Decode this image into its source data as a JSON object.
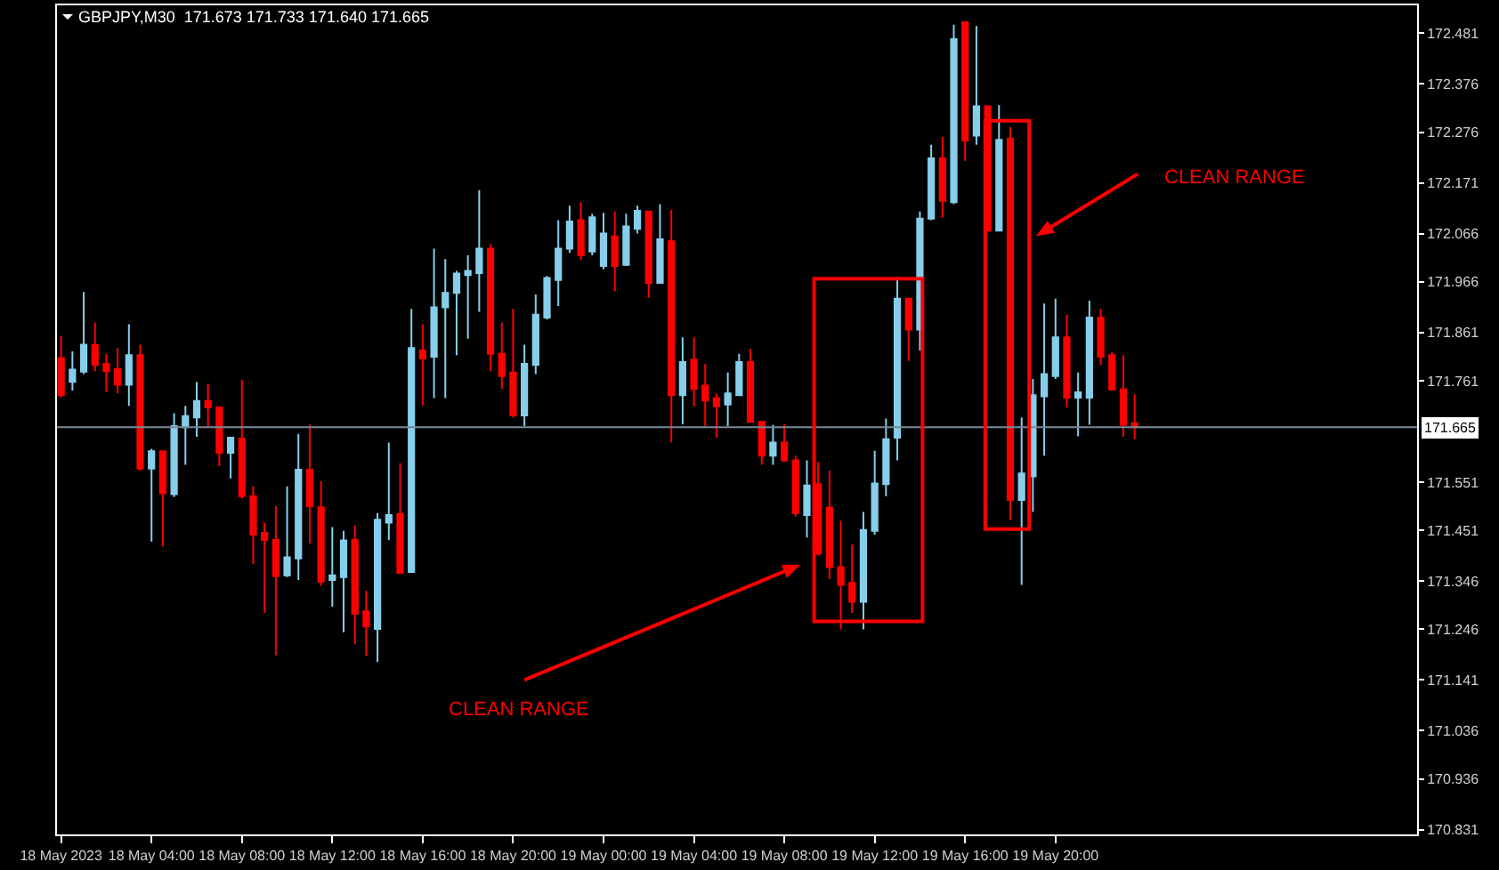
{
  "chart_data": {
    "type": "candlestick",
    "title": "GBPJPY,M30  171.673 171.733 171.640 171.665",
    "annotations": [
      "CLEAN RANGE",
      "CLEAN RANGE"
    ],
    "x": [
      "2023-05-18T00:00",
      "2023-05-18T00:30",
      "2023-05-18T01:00",
      "2023-05-18T01:30",
      "2023-05-18T02:00",
      "2023-05-18T02:30",
      "2023-05-18T03:00",
      "2023-05-18T03:30",
      "2023-05-18T04:00",
      "2023-05-18T04:30",
      "2023-05-18T05:00",
      "2023-05-18T05:30",
      "2023-05-18T06:00",
      "2023-05-18T06:30",
      "2023-05-18T07:00",
      "2023-05-18T07:30",
      "2023-05-18T08:00",
      "2023-05-18T08:30",
      "2023-05-18T09:00",
      "2023-05-18T09:30",
      "2023-05-18T10:00",
      "2023-05-18T10:30",
      "2023-05-18T11:00",
      "2023-05-18T11:30",
      "2023-05-18T12:00",
      "2023-05-18T12:30",
      "2023-05-18T13:00",
      "2023-05-18T13:30",
      "2023-05-18T14:00",
      "2023-05-18T14:30",
      "2023-05-18T15:00",
      "2023-05-18T15:30",
      "2023-05-18T16:00",
      "2023-05-18T16:30",
      "2023-05-18T17:00",
      "2023-05-18T17:30",
      "2023-05-18T18:00",
      "2023-05-18T18:30",
      "2023-05-18T19:00",
      "2023-05-18T19:30",
      "2023-05-18T20:00",
      "2023-05-18T20:30",
      "2023-05-18T21:00",
      "2023-05-18T21:30",
      "2023-05-18T22:00",
      "2023-05-18T22:30",
      "2023-05-18T23:00",
      "2023-05-18T23:30",
      "2023-05-19T00:00",
      "2023-05-19T00:30",
      "2023-05-19T01:00",
      "2023-05-19T01:30",
      "2023-05-19T02:00",
      "2023-05-19T02:30",
      "2023-05-19T03:00",
      "2023-05-19T03:30",
      "2023-05-19T04:00",
      "2023-05-19T04:30",
      "2023-05-19T05:00",
      "2023-05-19T05:30",
      "2023-05-19T06:00",
      "2023-05-19T06:30",
      "2023-05-19T07:00",
      "2023-05-19T07:30",
      "2023-05-19T08:00",
      "2023-05-19T08:30",
      "2023-05-19T09:00",
      "2023-05-19T09:30",
      "2023-05-19T10:00",
      "2023-05-19T10:30",
      "2023-05-19T11:00",
      "2023-05-19T11:30",
      "2023-05-19T12:00",
      "2023-05-19T12:30",
      "2023-05-19T13:00",
      "2023-05-19T13:30",
      "2023-05-19T14:00",
      "2023-05-19T14:30",
      "2023-05-19T15:00",
      "2023-05-19T15:30",
      "2023-05-19T16:00",
      "2023-05-19T16:30",
      "2023-05-19T17:00",
      "2023-05-19T17:30",
      "2023-05-19T18:00",
      "2023-05-19T18:30",
      "2023-05-19T19:00",
      "2023-05-19T19:30",
      "2023-05-19T20:00",
      "2023-05-19T20:30",
      "2023-05-19T21:00",
      "2023-05-19T21:30",
      "2023-05-19T22:00",
      "2023-05-19T22:30",
      "2023-05-19T23:00",
      "2023-05-19T23:30"
    ],
    "ohlc": [
      [
        171.808,
        171.854,
        171.726,
        171.731
      ],
      [
        171.759,
        171.822,
        171.741,
        171.784
      ],
      [
        171.78,
        171.945,
        171.775,
        171.836
      ],
      [
        171.835,
        171.882,
        171.781,
        171.794
      ],
      [
        171.796,
        171.817,
        171.738,
        171.781
      ],
      [
        171.785,
        171.829,
        171.735,
        171.753
      ],
      [
        171.753,
        171.878,
        171.709,
        171.814
      ],
      [
        171.814,
        171.836,
        171.575,
        171.579
      ],
      [
        171.579,
        171.62,
        171.428,
        171.615
      ],
      [
        171.615,
        171.615,
        171.418,
        171.528
      ],
      [
        171.526,
        171.694,
        171.52,
        171.667
      ],
      [
        171.665,
        171.709,
        171.587,
        171.688
      ],
      [
        171.685,
        171.759,
        171.645,
        171.719
      ],
      [
        171.719,
        171.755,
        171.665,
        171.706
      ],
      [
        171.706,
        171.706,
        171.584,
        171.612
      ],
      [
        171.612,
        171.643,
        171.559,
        171.643
      ],
      [
        171.641,
        171.763,
        171.517,
        171.522
      ],
      [
        171.522,
        171.542,
        171.381,
        171.442
      ],
      [
        171.446,
        171.467,
        171.28,
        171.431
      ],
      [
        171.431,
        171.501,
        171.192,
        171.356
      ],
      [
        171.358,
        171.542,
        171.354,
        171.395
      ],
      [
        171.393,
        171.651,
        171.348,
        171.577
      ],
      [
        171.577,
        171.671,
        171.424,
        171.501
      ],
      [
        171.499,
        171.553,
        171.336,
        171.345
      ],
      [
        171.348,
        171.458,
        171.293,
        171.358
      ],
      [
        171.354,
        171.45,
        171.24,
        171.43
      ],
      [
        171.431,
        171.462,
        171.215,
        171.278
      ],
      [
        171.283,
        171.326,
        171.191,
        171.252
      ],
      [
        171.247,
        171.487,
        171.178,
        171.473
      ],
      [
        171.467,
        171.633,
        171.431,
        171.483
      ],
      [
        171.485,
        171.59,
        171.363,
        171.363
      ],
      [
        171.365,
        171.91,
        171.365,
        171.829
      ],
      [
        171.824,
        171.878,
        171.71,
        171.807
      ],
      [
        171.811,
        172.035,
        171.725,
        171.913
      ],
      [
        171.913,
        172.013,
        171.725,
        171.943
      ],
      [
        171.943,
        171.989,
        171.814,
        171.983
      ],
      [
        171.98,
        172.021,
        171.848,
        171.989
      ],
      [
        171.984,
        172.156,
        171.904,
        172.035
      ],
      [
        172.035,
        172.044,
        171.781,
        171.817
      ],
      [
        171.817,
        171.882,
        171.744,
        171.771
      ],
      [
        171.778,
        171.91,
        171.685,
        171.689
      ],
      [
        171.689,
        171.836,
        171.667,
        171.796
      ],
      [
        171.794,
        171.94,
        171.775,
        171.898
      ],
      [
        171.892,
        171.978,
        171.888,
        171.974
      ],
      [
        171.97,
        172.094,
        171.916,
        172.035
      ],
      [
        172.035,
        172.124,
        172.026,
        172.091
      ],
      [
        172.094,
        172.131,
        172.011,
        172.021
      ],
      [
        172.029,
        172.107,
        172.021,
        172.1
      ],
      [
        171.999,
        172.109,
        171.992,
        172.066
      ],
      [
        172.06,
        172.112,
        171.947,
        171.999
      ],
      [
        172.001,
        172.107,
        171.999,
        172.081
      ],
      [
        172.076,
        172.124,
        172.066,
        172.113
      ],
      [
        172.112,
        172.112,
        171.933,
        171.964
      ],
      [
        171.964,
        172.127,
        171.964,
        172.054
      ],
      [
        172.05,
        172.115,
        171.633,
        171.731
      ],
      [
        171.731,
        171.851,
        171.671,
        171.8
      ],
      [
        171.805,
        171.851,
        171.708,
        171.744
      ],
      [
        171.751,
        171.796,
        171.665,
        171.72
      ],
      [
        171.725,
        171.735,
        171.643,
        171.708
      ],
      [
        171.712,
        171.778,
        171.667,
        171.735
      ],
      [
        171.731,
        171.817,
        171.731,
        171.8
      ],
      [
        171.8,
        171.827,
        171.676,
        171.676
      ],
      [
        171.676,
        171.676,
        171.587,
        171.606
      ],
      [
        171.606,
        171.67,
        171.587,
        171.633
      ],
      [
        171.633,
        171.671,
        171.593,
        171.596
      ],
      [
        171.596,
        171.606,
        171.48,
        171.487
      ],
      [
        171.483,
        171.596,
        171.436,
        171.544
      ],
      [
        171.547,
        171.593,
        171.399,
        171.403
      ],
      [
        171.498,
        171.575,
        171.35,
        171.375
      ],
      [
        171.375,
        171.471,
        171.246,
        171.338
      ],
      [
        171.342,
        171.422,
        171.28,
        171.303
      ],
      [
        171.303,
        171.489,
        171.246,
        171.452
      ],
      [
        171.45,
        171.616,
        171.442,
        171.548
      ],
      [
        171.547,
        171.683,
        171.522,
        171.64
      ],
      [
        171.643,
        171.976,
        171.596,
        171.931
      ],
      [
        171.931,
        171.931,
        171.802,
        171.867
      ],
      [
        171.867,
        172.112,
        171.824,
        172.097
      ],
      [
        172.097,
        172.25,
        172.094,
        172.222
      ],
      [
        172.222,
        172.266,
        172.099,
        172.134
      ],
      [
        172.131,
        172.499,
        172.127,
        172.469
      ],
      [
        172.504,
        172.504,
        172.217,
        172.259
      ],
      [
        172.269,
        172.496,
        172.25,
        172.33
      ],
      [
        172.33,
        172.332,
        172.072,
        172.072
      ],
      [
        172.072,
        172.332,
        172.072,
        172.26
      ],
      [
        172.263,
        172.287,
        171.473,
        171.514
      ],
      [
        171.514,
        171.685,
        171.338,
        171.569
      ],
      [
        171.563,
        171.765,
        171.489,
        171.731
      ],
      [
        171.729,
        171.921,
        171.606,
        171.775
      ],
      [
        171.771,
        171.931,
        171.765,
        171.851
      ],
      [
        171.851,
        171.898,
        171.706,
        171.726
      ],
      [
        171.726,
        171.778,
        171.646,
        171.737
      ],
      [
        171.726,
        171.927,
        171.67,
        171.892
      ],
      [
        171.892,
        171.91,
        171.794,
        171.811
      ],
      [
        171.814,
        171.821,
        171.741,
        171.743
      ],
      [
        171.743,
        171.814,
        171.645,
        171.67
      ],
      [
        171.673,
        171.733,
        171.64,
        171.665
      ]
    ],
    "xlim": [
      "2023-05-17T23:49",
      "2023-05-20T12:00"
    ],
    "xticks": [
      {
        "value": "2023-05-18T00:00",
        "label": "18 May 2023"
      },
      {
        "value": "2023-05-18T04:00",
        "label": "18 May 04:00"
      },
      {
        "value": "2023-05-18T08:00",
        "label": "18 May 08:00"
      },
      {
        "value": "2023-05-18T12:00",
        "label": "18 May 12:00"
      },
      {
        "value": "2023-05-18T16:00",
        "label": "18 May 16:00"
      },
      {
        "value": "2023-05-18T20:00",
        "label": "18 May 20:00"
      },
      {
        "value": "2023-05-19T00:00",
        "label": "19 May 00:00"
      },
      {
        "value": "2023-05-19T04:00",
        "label": "19 May 04:00"
      },
      {
        "value": "2023-05-19T08:00",
        "label": "19 May 08:00"
      },
      {
        "value": "2023-05-19T12:00",
        "label": "19 May 12:00"
      },
      {
        "value": "2023-05-19T16:00",
        "label": "19 May 16:00"
      },
      {
        "value": "2023-05-19T20:00",
        "label": "19 May 20:00"
      }
    ],
    "ylim": [
      170.821,
      172.539
    ],
    "yticks": [
      {
        "value": 172.481,
        "label": "172.481"
      },
      {
        "value": 172.376,
        "label": "172.376"
      },
      {
        "value": 172.276,
        "label": "172.276"
      },
      {
        "value": 172.171,
        "label": "172.171"
      },
      {
        "value": 172.066,
        "label": "172.066"
      },
      {
        "value": 171.966,
        "label": "171.966"
      },
      {
        "value": 171.861,
        "label": "171.861"
      },
      {
        "value": 171.761,
        "label": "171.761"
      },
      {
        "value": 171.551,
        "label": "171.551"
      },
      {
        "value": 171.451,
        "label": "171.451"
      },
      {
        "value": 171.346,
        "label": "171.346"
      },
      {
        "value": 171.246,
        "label": "171.246"
      },
      {
        "value": 171.141,
        "label": "171.141"
      },
      {
        "value": 171.036,
        "label": "171.036"
      },
      {
        "value": 170.936,
        "label": "170.936"
      },
      {
        "value": 170.831,
        "label": "170.831"
      }
    ],
    "ref_lines": [
      {
        "axis": "y",
        "value": 171.665,
        "label": "171.665",
        "color": "#778899"
      }
    ],
    "grid": false
  }
}
